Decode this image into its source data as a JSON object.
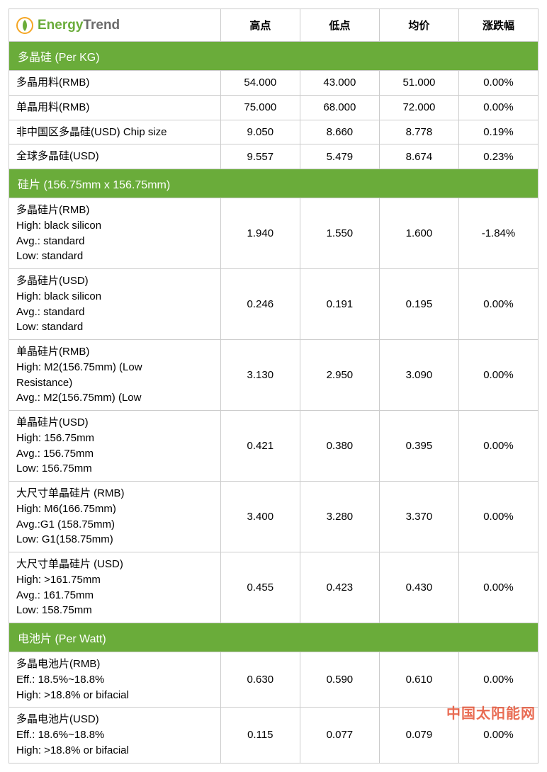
{
  "brand": {
    "part1": "Energy",
    "part2": "Trend"
  },
  "headers": {
    "high": "高点",
    "low": "低点",
    "avg": "均价",
    "change": "涨跌幅"
  },
  "sections": [
    {
      "title": "多晶硅 (Per KG)",
      "rows": [
        {
          "label": "多晶用料(RMB)",
          "high": "54.000",
          "low": "43.000",
          "avg": "51.000",
          "change": "0.00%"
        },
        {
          "label": "单晶用料(RMB)",
          "high": "75.000",
          "low": "68.000",
          "avg": "72.000",
          "change": "0.00%"
        },
        {
          "label": "非中国区多晶硅(USD) Chip size",
          "high": "9.050",
          "low": "8.660",
          "avg": "8.778",
          "change": "0.19%"
        },
        {
          "label": "全球多晶硅(USD)",
          "high": "9.557",
          "low": "5.479",
          "avg": "8.674",
          "change": "0.23%"
        }
      ]
    },
    {
      "title": "硅片 (156.75mm x 156.75mm)",
      "rows": [
        {
          "label": "多晶硅片(RMB)\nHigh: black silicon\nAvg.: standard\nLow: standard",
          "high": "1.940",
          "low": "1.550",
          "avg": "1.600",
          "change": "-1.84%"
        },
        {
          "label": "多晶硅片(USD)\nHigh: black silicon\nAvg.: standard\nLow: standard",
          "high": "0.246",
          "low": "0.191",
          "avg": "0.195",
          "change": "0.00%"
        },
        {
          "label": "单晶硅片(RMB)\nHigh: M2(156.75mm) (Low\nResistance)\nAvg.: M2(156.75mm) (Low",
          "high": "3.130",
          "low": "2.950",
          "avg": "3.090",
          "change": "0.00%"
        },
        {
          "label": "单晶硅片(USD)\nHigh: 156.75mm\nAvg.: 156.75mm\nLow: 156.75mm",
          "high": "0.421",
          "low": "0.380",
          "avg": "0.395",
          "change": "0.00%"
        },
        {
          "label": "大尺寸单晶硅片 (RMB)\nHigh: M6(166.75mm)\nAvg.:G1 (158.75mm)\nLow: G1(158.75mm)",
          "high": "3.400",
          "low": "3.280",
          "avg": "3.370",
          "change": "0.00%"
        },
        {
          "label": "大尺寸单晶硅片 (USD)\nHigh: >161.75mm\nAvg.: 161.75mm\nLow: 158.75mm",
          "high": "0.455",
          "low": "0.423",
          "avg": "0.430",
          "change": "0.00%"
        }
      ]
    },
    {
      "title": "电池片 (Per Watt)",
      "rows": [
        {
          "label": "多晶电池片(RMB)\nEff.: 18.5%~18.8%\nHigh: >18.8% or bifacial",
          "high": "0.630",
          "low": "0.590",
          "avg": "0.610",
          "change": "0.00%"
        },
        {
          "label": "多晶电池片(USD)\nEff.: 18.6%~18.8%\nHigh: >18.8% or bifacial",
          "high": "0.115",
          "low": "0.077",
          "avg": "0.079",
          "change": "0.00%"
        }
      ]
    }
  ],
  "watermark": "中国太阳能网",
  "style": {
    "section_bg": "#6aac3a",
    "section_fg": "#ffffff",
    "border_color": "#cccccc",
    "font_family": "Arial, Microsoft YaHei, sans-serif",
    "logo_green": "#6aac3a",
    "logo_grey": "#6b6b6b",
    "watermark_color": "#e23b1a"
  }
}
